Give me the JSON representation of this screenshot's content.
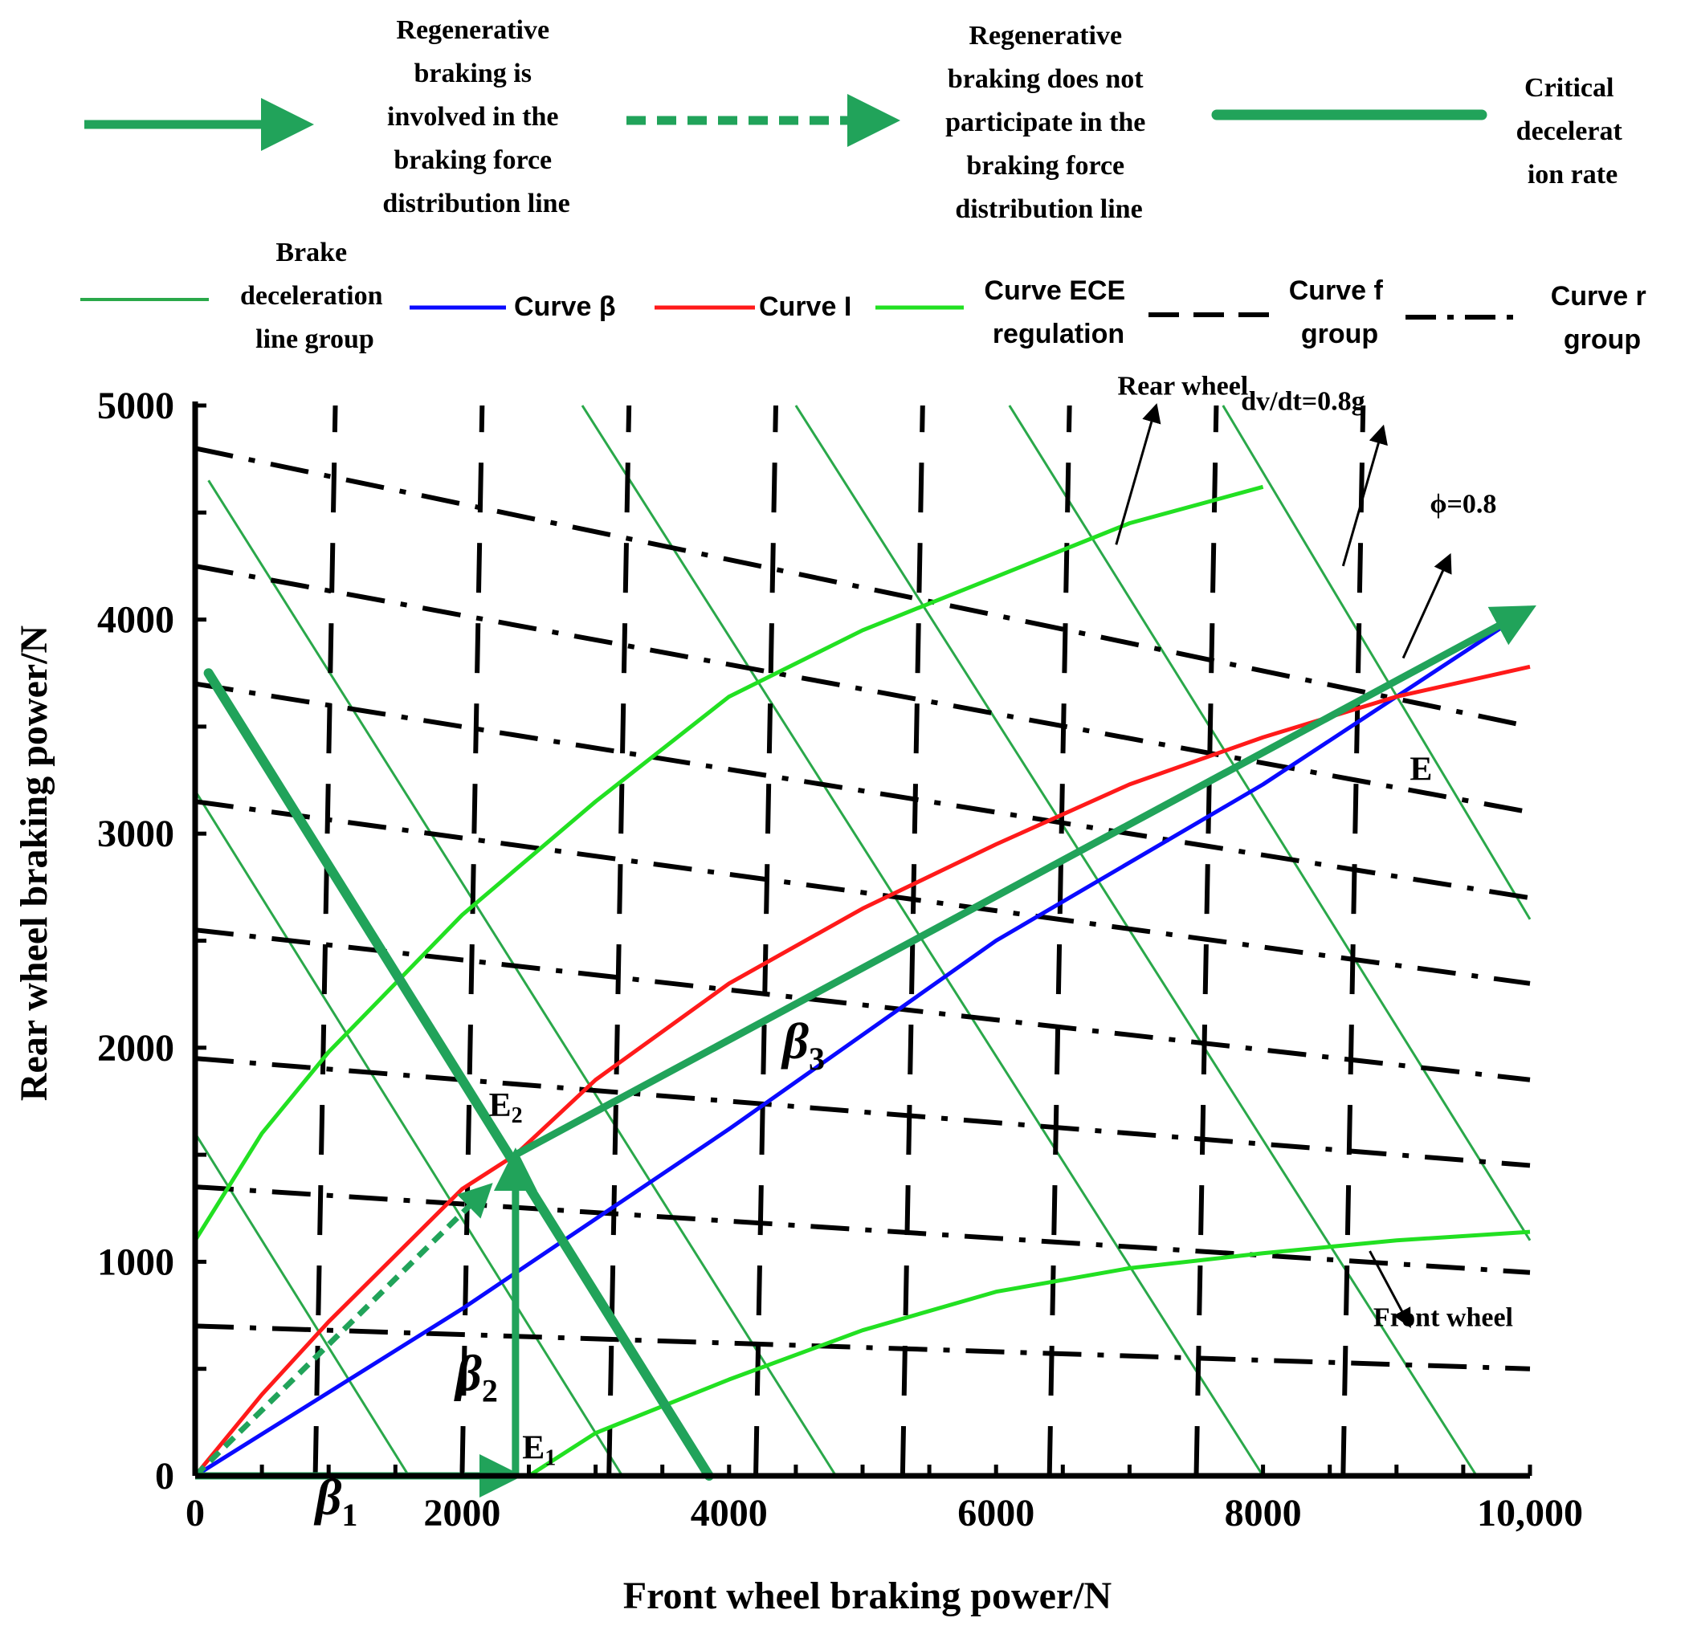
{
  "colors": {
    "arrow_green": "#21a35a",
    "decel_green": "#2aa84a",
    "curve_beta": "#0a0aff",
    "curve_I": "#ff1a1a",
    "curve_ece": "#22e022",
    "black": "#000000"
  },
  "legend": {
    "row1": [
      {
        "key": "regen_involved",
        "label_lines": [
          "Regenerative",
          "braking is",
          "involved in the",
          "braking force",
          "distribution line"
        ]
      },
      {
        "key": "regen_not",
        "label_lines": [
          "Regenerative",
          "braking does not",
          "participate in the",
          "braking force",
          "distribution line"
        ]
      },
      {
        "key": "critical",
        "label_lines": [
          "Critical",
          "decelerat",
          "ion rate"
        ]
      }
    ],
    "row2": [
      {
        "key": "decel_group",
        "label_lines": [
          "Brake",
          "deceleration",
          "line group"
        ]
      },
      {
        "key": "curve_beta",
        "label_lines": [
          "Curve β"
        ]
      },
      {
        "key": "curve_I",
        "label_lines": [
          "Curve I"
        ]
      },
      {
        "key": "curve_ece",
        "label_lines": [
          "Curve ECE",
          "regulation"
        ]
      },
      {
        "key": "curve_f",
        "label_lines": [
          "Curve f",
          "group"
        ]
      },
      {
        "key": "curve_r",
        "label_lines": [
          "Curve r",
          "group"
        ]
      }
    ]
  },
  "chart_data": {
    "type": "line",
    "xlabel": "Front wheel braking power/N",
    "ylabel": "Rear wheel braking power/N",
    "xlim": [
      0,
      10000
    ],
    "ylim": [
      0,
      5000
    ],
    "x_ticks": [
      "0",
      "2000",
      "4000",
      "6000",
      "8000",
      "10,000"
    ],
    "x_tick_values": [
      0,
      2000,
      4000,
      6000,
      8000,
      10000
    ],
    "y_ticks": [
      "0",
      "1000",
      "2000",
      "3000",
      "4000",
      "5000"
    ],
    "y_tick_values": [
      0,
      1000,
      2000,
      3000,
      4000,
      5000
    ],
    "grid": false,
    "series": [
      {
        "key": "curve_beta",
        "points": [
          [
            0,
            0
          ],
          [
            2000,
            780
          ],
          [
            4000,
            1620
          ],
          [
            6000,
            2500
          ],
          [
            8000,
            3230
          ],
          [
            9000,
            3640
          ],
          [
            10000,
            4050
          ]
        ]
      },
      {
        "key": "curve_I",
        "points": [
          [
            0,
            0
          ],
          [
            500,
            380
          ],
          [
            1000,
            720
          ],
          [
            2000,
            1340
          ],
          [
            2400,
            1500
          ],
          [
            3000,
            1850
          ],
          [
            4000,
            2300
          ],
          [
            5000,
            2650
          ],
          [
            6000,
            2950
          ],
          [
            7000,
            3230
          ],
          [
            8000,
            3450
          ],
          [
            9000,
            3640
          ],
          [
            10000,
            3780
          ]
        ]
      },
      {
        "key": "curve_ece_rear",
        "points": [
          [
            0,
            1100
          ],
          [
            500,
            1600
          ],
          [
            1000,
            1980
          ],
          [
            2000,
            2620
          ],
          [
            3000,
            3150
          ],
          [
            4000,
            3640
          ],
          [
            5000,
            3950
          ],
          [
            6000,
            4200
          ],
          [
            7000,
            4450
          ],
          [
            8000,
            4620
          ]
        ]
      },
      {
        "key": "curve_ece_front",
        "points": [
          [
            2500,
            0
          ],
          [
            3000,
            200
          ],
          [
            4000,
            450
          ],
          [
            5000,
            680
          ],
          [
            6000,
            860
          ],
          [
            7000,
            970
          ],
          [
            8000,
            1040
          ],
          [
            9000,
            1100
          ],
          [
            10000,
            1140
          ]
        ]
      }
    ],
    "decel_lines": [
      {
        "x0": 0,
        "y0": 1600,
        "x1": 1600,
        "y1": 0
      },
      {
        "x0": 0,
        "y0": 3200,
        "x1": 3200,
        "y1": 0
      },
      {
        "x0": 100,
        "y0": 4650,
        "x1": 4800,
        "y1": 0
      },
      {
        "x0": 2900,
        "y0": 5000,
        "x1": 8000,
        "y1": 0
      },
      {
        "x0": 4500,
        "y0": 5000,
        "x1": 9600,
        "y1": 0
      },
      {
        "x0": 6100,
        "y0": 5000,
        "x1": 10000,
        "y1": 1100
      },
      {
        "x0": 7700,
        "y0": 5000,
        "x1": 10000,
        "y1": 2600
      }
    ],
    "f_group_x": [
      900,
      2000,
      3100,
      4200,
      5300,
      6400,
      7500,
      8600
    ],
    "r_group": [
      {
        "y0": 700,
        "y1": 500
      },
      {
        "y0": 1350,
        "y1": 950
      },
      {
        "y0": 1950,
        "y1": 1450
      },
      {
        "y0": 2550,
        "y1": 1850
      },
      {
        "y0": 3150,
        "y1": 2300
      },
      {
        "y0": 3700,
        "y1": 2700
      },
      {
        "y0": 4250,
        "y1": 3100
      },
      {
        "y0": 4800,
        "y1": 3500
      }
    ],
    "arrows": [
      {
        "key": "beta1",
        "style": "solid",
        "from": [
          0,
          0
        ],
        "to": [
          2400,
          0
        ]
      },
      {
        "key": "beta2",
        "style": "solid",
        "from": [
          2400,
          0
        ],
        "to": [
          2400,
          1500
        ]
      },
      {
        "key": "beta3",
        "style": "solid",
        "from": [
          2400,
          1500
        ],
        "to": [
          10000,
          4050
        ]
      },
      {
        "key": "dashed",
        "style": "dashed",
        "from": [
          0,
          0
        ],
        "to": [
          2200,
          1350
        ]
      }
    ],
    "critical_line": {
      "from": [
        100,
        3750
      ],
      "to": [
        3850,
        0
      ]
    },
    "point_labels": [
      {
        "text": "E",
        "x": 9100,
        "y": 3250
      },
      {
        "text": "E2",
        "x": 2200,
        "y": 1680
      },
      {
        "text": "E1",
        "x": 2450,
        "y": 80
      }
    ],
    "beta_labels": [
      {
        "main": "β",
        "sub": "1",
        "x": 900,
        "y": -180
      },
      {
        "main": "β",
        "sub": "2",
        "x": 1950,
        "y": 400
      },
      {
        "main": "β",
        "sub": "3",
        "x": 4400,
        "y": 1950
      }
    ],
    "annotations": [
      {
        "text": "Rear wheel",
        "x": 7400,
        "y": 5050,
        "ax0": 6900,
        "ay0": 4350,
        "ax1": 7200,
        "ay1": 5000
      },
      {
        "text": "dv/dt=0.8g",
        "x": 8300,
        "y": 4980,
        "ax0": 8600,
        "ay0": 4250,
        "ax1": 8900,
        "ay1": 4900
      },
      {
        "text": "ϕ=0.8",
        "x": 9500,
        "y": 4500,
        "ax0": 9050,
        "ay0": 3820,
        "ax1": 9400,
        "ay1": 4300
      },
      {
        "text": "Front wheel",
        "x": 9350,
        "y": 700,
        "ax0": 8800,
        "ay0": 1050,
        "ax1": 9100,
        "ay1": 700
      }
    ]
  }
}
